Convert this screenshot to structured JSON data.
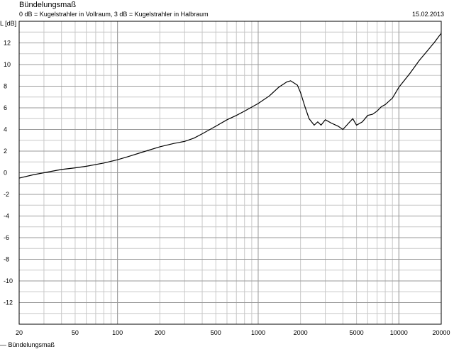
{
  "header": {
    "title": "Bündelungsmaß",
    "subtitle": "0 dB = Kugelstrahler in Vollraum, 3 dB = Kugelstrahler in Halbraum",
    "date": "15.02.2013"
  },
  "chart_data": {
    "type": "line",
    "title": "Bündelungsmaß",
    "ylabel": "L [dB]",
    "xlabel": "",
    "xscale": "log",
    "xlim": [
      20,
      20000
    ],
    "ylim": [
      -14,
      14
    ],
    "grid": true,
    "x_ticks": [
      20,
      50,
      100,
      200,
      500,
      1000,
      2000,
      5000,
      10000,
      20000
    ],
    "y_ticks": [
      12,
      10,
      8,
      6,
      4,
      2,
      0,
      -2,
      -4,
      -6,
      -8,
      -10,
      -12
    ],
    "series": [
      {
        "name": "Bündelungsmaß",
        "color": "#000000",
        "points": [
          [
            20,
            -0.5
          ],
          [
            25,
            -0.2
          ],
          [
            30,
            0.0
          ],
          [
            40,
            0.3
          ],
          [
            50,
            0.45
          ],
          [
            60,
            0.6
          ],
          [
            80,
            0.9
          ],
          [
            100,
            1.2
          ],
          [
            120,
            1.5
          ],
          [
            150,
            1.9
          ],
          [
            200,
            2.4
          ],
          [
            250,
            2.7
          ],
          [
            300,
            2.9
          ],
          [
            350,
            3.2
          ],
          [
            400,
            3.6
          ],
          [
            500,
            4.3
          ],
          [
            600,
            4.9
          ],
          [
            700,
            5.3
          ],
          [
            800,
            5.7
          ],
          [
            1000,
            6.4
          ],
          [
            1200,
            7.1
          ],
          [
            1400,
            7.9
          ],
          [
            1600,
            8.4
          ],
          [
            1700,
            8.5
          ],
          [
            1900,
            8.1
          ],
          [
            2000,
            7.4
          ],
          [
            2150,
            6.1
          ],
          [
            2300,
            5.0
          ],
          [
            2500,
            4.4
          ],
          [
            2650,
            4.7
          ],
          [
            2800,
            4.4
          ],
          [
            3000,
            4.9
          ],
          [
            3300,
            4.6
          ],
          [
            3700,
            4.3
          ],
          [
            4000,
            4.0
          ],
          [
            4400,
            4.6
          ],
          [
            4700,
            5.0
          ],
          [
            5000,
            4.4
          ],
          [
            5500,
            4.7
          ],
          [
            6000,
            5.3
          ],
          [
            6500,
            5.4
          ],
          [
            7000,
            5.7
          ],
          [
            7500,
            6.1
          ],
          [
            8000,
            6.3
          ],
          [
            9000,
            6.9
          ],
          [
            10000,
            7.9
          ],
          [
            12000,
            9.2
          ],
          [
            14000,
            10.4
          ],
          [
            16000,
            11.3
          ],
          [
            18000,
            12.1
          ],
          [
            20000,
            12.9
          ]
        ]
      }
    ]
  },
  "legend": {
    "label": "— Bündelungsmaß"
  }
}
